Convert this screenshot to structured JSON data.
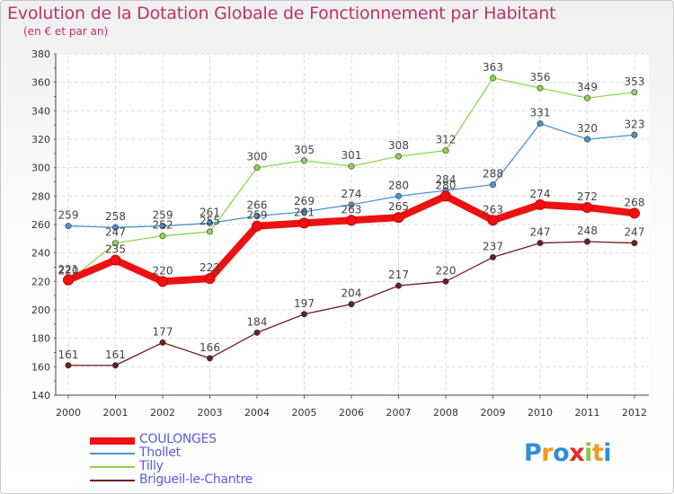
{
  "title": "Evolution de la Dotation Globale de Fonctionnement par Habitant",
  "subtitle": "(en € et par an)",
  "logo": {
    "text": "Proxiti",
    "letters": [
      {
        "ch": "P",
        "color": "#2f8fd8"
      },
      {
        "ch": "r",
        "color": "#f39a1e"
      },
      {
        "ch": "o",
        "color": "#2f8fd8"
      },
      {
        "ch": "x",
        "color": "#e52a2a"
      },
      {
        "ch": "i",
        "color": "#8cc63f"
      },
      {
        "ch": "t",
        "color": "#f39a1e"
      },
      {
        "ch": "i",
        "color": "#2f8fd8"
      }
    ]
  },
  "chart_data": {
    "type": "line",
    "title": "Evolution de la Dotation Globale de Fonctionnement par Habitant",
    "subtitle": "(en € et par an)",
    "categories": [
      "2000",
      "2001",
      "2002",
      "2003",
      "2004",
      "2005",
      "2006",
      "2007",
      "2008",
      "2009",
      "2010",
      "2011",
      "2012"
    ],
    "ylim": [
      140,
      380
    ],
    "yticks": [
      140,
      160,
      180,
      200,
      220,
      240,
      260,
      280,
      300,
      320,
      340,
      360,
      380
    ],
    "grid": true,
    "legend_position": "bottom-left",
    "series": [
      {
        "name": "Brigueil-le-Chantre",
        "color": "#6b1f1f",
        "values": [
          161,
          161,
          177,
          166,
          184,
          197,
          204,
          217,
          220,
          237,
          247,
          248,
          247
        ]
      },
      {
        "name": "Tilly",
        "color": "#8fd44f",
        "values": [
          220,
          247,
          252,
          255,
          300,
          305,
          301,
          308,
          312,
          363,
          356,
          349,
          353
        ]
      },
      {
        "name": "Thollet",
        "color": "#4d93d0",
        "values": [
          259,
          258,
          259,
          261,
          266,
          269,
          274,
          280,
          284,
          288,
          331,
          320,
          323
        ]
      },
      {
        "name": "COULONGES",
        "color": "#ee1111",
        "values": [
          221,
          235,
          220,
          222,
          259,
          261,
          263,
          265,
          280,
          263,
          274,
          272,
          268
        ]
      }
    ],
    "legend": [
      {
        "name": "COULONGES",
        "color": "#ee1111",
        "label_color": "#5a5ae6"
      },
      {
        "name": "Thollet",
        "color": "#4d93d0",
        "label_color": "#5a5ae6"
      },
      {
        "name": "Tilly",
        "color": "#8fd44f",
        "label_color": "#5a5ae6"
      },
      {
        "name": "Brigueil-le-Chantre",
        "color": "#6b1f1f",
        "label_color": "#5a5ae6"
      }
    ]
  }
}
